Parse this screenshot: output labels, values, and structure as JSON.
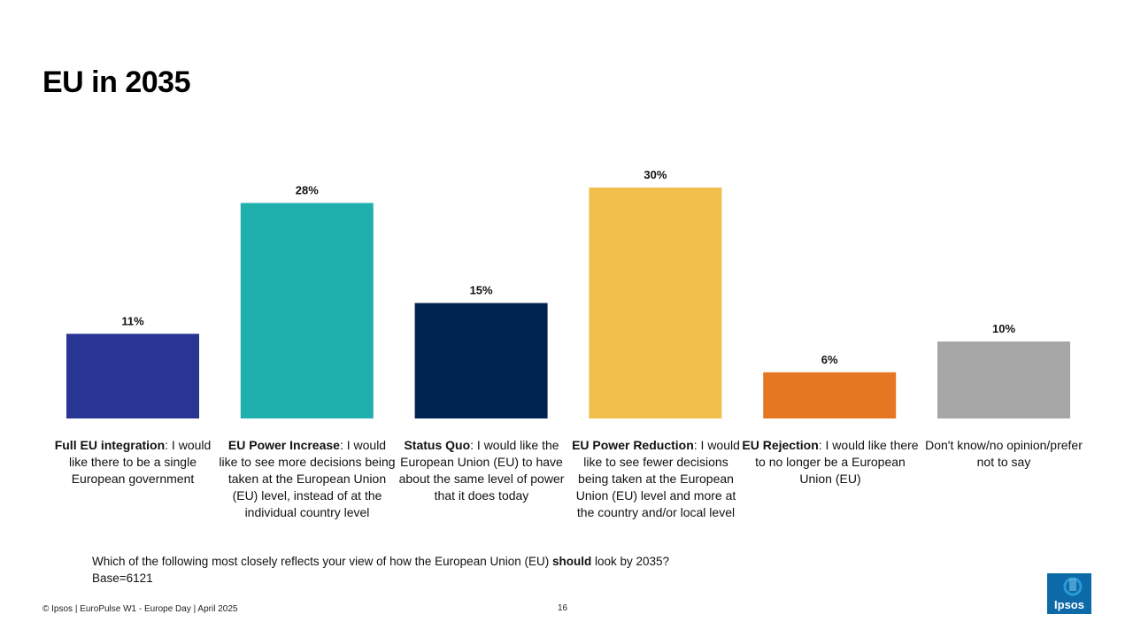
{
  "slide": {
    "title": "EU in 2035",
    "question_pre": "Which of the following most closely reflects your view of how the European Union (EU) ",
    "question_bold": "should",
    "question_post": " look by 2035?",
    "base": "Base=6121",
    "footer": "© Ipsos | EuroPulse W1 - Europe Day | April 2025",
    "page_number": "16",
    "logo_text": "Ipsos"
  },
  "colors": {
    "full_integration": "#283593",
    "power_increase": "#1fb0ae",
    "status_quo": "#002451",
    "power_reduction": "#f0bf4c",
    "rejection": "#e67722",
    "dont_know": "#a6a6a6",
    "logo": "#0d6aa8"
  },
  "chart_data": {
    "type": "bar",
    "title": "EU in 2035",
    "ylim": [
      0,
      30
    ],
    "grid": false,
    "categories": [
      {
        "bold": "Full EU integration",
        "text": ": I would like there to be a single European government"
      },
      {
        "bold": "EU Power Increase",
        "text": ": I would like to see more decisions being taken at the European Union (EU) level, instead of at the individual country level"
      },
      {
        "bold": "Status Quo",
        "text": ": I would like the European Union (EU) to have about the same level of power that it does today"
      },
      {
        "bold": "EU Power Reduction",
        "text": ": I would like to see fewer decisions being taken at the European Union (EU) level and more at the country and/or local level"
      },
      {
        "bold": "EU Rejection",
        "text": ": I would like there to no longer be a European Union (EU)"
      },
      {
        "bold": "",
        "text": "Don't know/no opinion/prefer not to say"
      }
    ],
    "values": [
      11,
      28,
      15,
      30,
      6,
      10
    ],
    "data_labels": [
      "11%",
      "28%",
      "15%",
      "30%",
      "6%",
      "10%"
    ]
  }
}
